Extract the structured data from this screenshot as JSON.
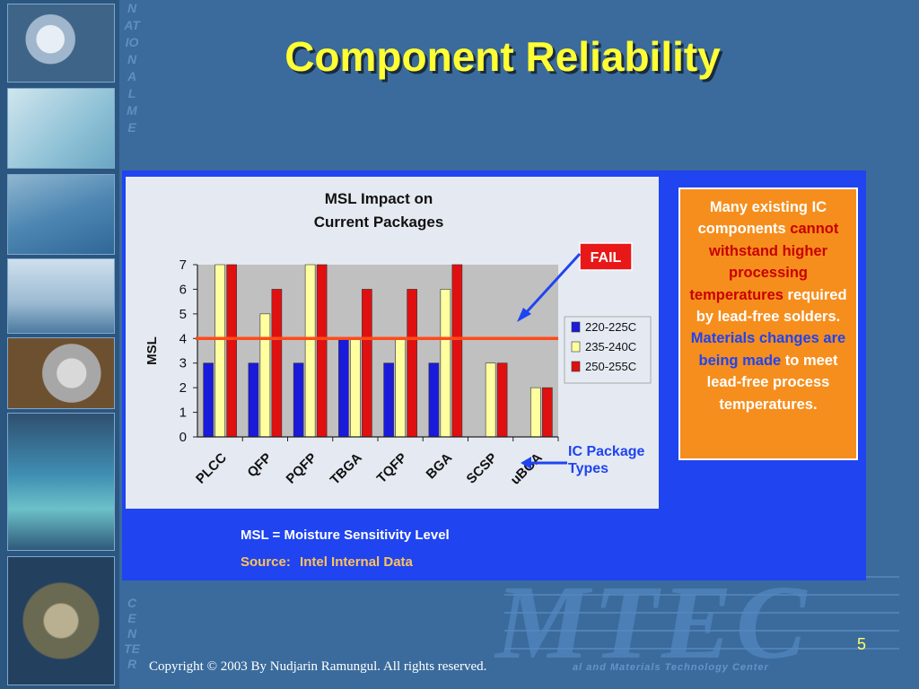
{
  "slide": {
    "title": "Component Reliability",
    "page_number": "5",
    "copyright": "Copyright © 2003 By Nudjarin Ramungul. All rights reserved."
  },
  "branding": {
    "vertical_text_top": "NATIONAL ME",
    "vertical_text_bottom": "CENTER",
    "logo_text": "MTEC",
    "logo_subtitle": "al and Materials Technology Center"
  },
  "notes": {
    "msl_definition": "MSL = Moisture Sensitivity Level",
    "source_label": "Source:",
    "source_value": "Intel Internal Data",
    "callout_segments": [
      {
        "text": "Many existing IC components ",
        "color": "white"
      },
      {
        "text": "cannot withstand higher processing temperatures ",
        "color": "red"
      },
      {
        "text": "required by lead-free solders. ",
        "color": "white"
      },
      {
        "text": "Materials changes are being made ",
        "color": "blue"
      },
      {
        "text": "to meet lead-free process temperatures.",
        "color": "white"
      }
    ]
  },
  "chart_data": {
    "type": "bar",
    "title": "MSL Impact on Current Packages",
    "title_lines": [
      "MSL Impact on",
      "Current Packages"
    ],
    "ylabel": "MSL",
    "xlabel_lines": [
      "IC Package",
      "Types"
    ],
    "ylim": [
      0,
      7
    ],
    "yticks": [
      0,
      1,
      2,
      3,
      4,
      5,
      6,
      7
    ],
    "categories": [
      "PLCC",
      "QFP",
      "PQFP",
      "TBGA",
      "TQFP",
      "BGA",
      "SCSP",
      "uBGA"
    ],
    "series": [
      {
        "name": "220-225C",
        "color": "#1a1adb",
        "values": [
          3,
          3,
          3,
          4,
          3,
          3,
          null,
          null
        ]
      },
      {
        "name": "235-240C",
        "color": "#ffffa0",
        "values": [
          7,
          5,
          7,
          4,
          4,
          6,
          3,
          2
        ]
      },
      {
        "name": "250-255C",
        "color": "#e01010",
        "values": [
          7,
          6,
          7,
          6,
          6,
          7,
          3,
          2
        ]
      }
    ],
    "threshold": {
      "value": 4,
      "color": "#ff4a1a"
    },
    "annotations": [
      {
        "text": "FAIL",
        "bg": "#e81818",
        "color": "#ffffff"
      }
    ],
    "legend_position": "right",
    "grid": false,
    "plot_bg": "#c0c0c0"
  }
}
